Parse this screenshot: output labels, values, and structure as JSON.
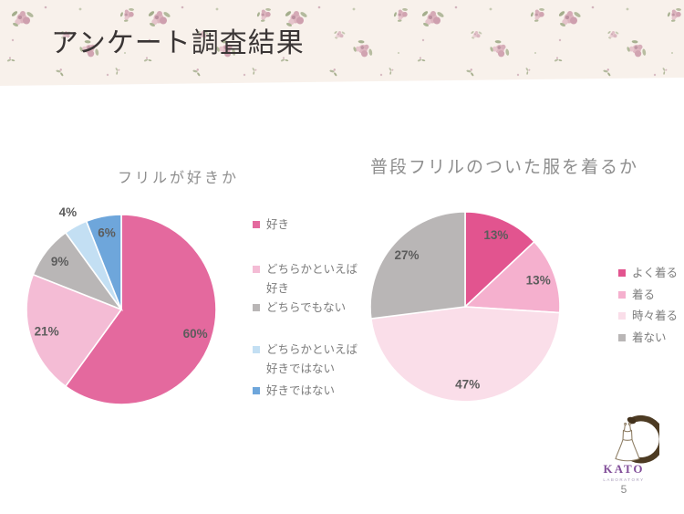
{
  "slide": {
    "title": "アンケート調査結果",
    "page_number": "5",
    "background": "#ffffff",
    "banner_background": "#f8f1eb"
  },
  "logo": {
    "name": "KATO",
    "subtitle": "LABORATORY",
    "name_color": "#83509a",
    "ring_color": "#4d3b23"
  },
  "chart_data": [
    {
      "type": "pie",
      "title": "フリルが好きか",
      "labels": "percent",
      "legend_position": "right",
      "start_angle_deg": 0,
      "direction": "clockwise",
      "data_label_color": "#5c5c5c",
      "series": [
        {
          "name": "好き",
          "value": 60,
          "color": "#e4699e"
        },
        {
          "name": "どちらかといえば好き",
          "value": 21,
          "color": "#f4bcd5"
        },
        {
          "name": "どちらでもない",
          "value": 9,
          "color": "#b9b6b6"
        },
        {
          "name": "どちらかといえば好きではない",
          "value": 4,
          "color": "#c3dff3",
          "label_pos": "outside"
        },
        {
          "name": "好きではない",
          "value": 6,
          "color": "#6ea6db"
        }
      ]
    },
    {
      "type": "pie",
      "title": "普段フリルのついた服を着るか",
      "labels": "percent",
      "legend_position": "right",
      "start_angle_deg": 0,
      "direction": "clockwise",
      "data_label_color": "#5c5c5c",
      "series": [
        {
          "name": "よく着る",
          "value": 13,
          "color": "#e2548f"
        },
        {
          "name": "着る",
          "value": 13,
          "color": "#f5b0ce"
        },
        {
          "name": "時々着る",
          "value": 47,
          "color": "#fadee9"
        },
        {
          "name": "着ない",
          "value": 27,
          "color": "#b9b6b6"
        }
      ]
    }
  ]
}
